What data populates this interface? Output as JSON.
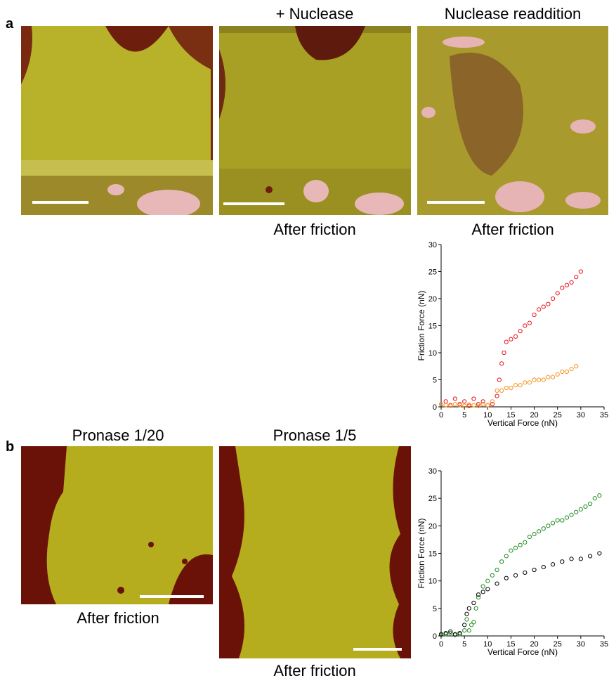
{
  "panel_a": {
    "label": "a",
    "titles": [
      "+ Nuclease",
      "Nuclease readdition"
    ],
    "captions": [
      "After friction",
      "After friction"
    ]
  },
  "panel_b": {
    "label": "b",
    "titles": [
      "Pronase 1/20",
      "Pronase 1/5"
    ],
    "captions": [
      "After friction",
      "After friction"
    ]
  },
  "chart_data": [
    {
      "type": "scatter",
      "x_label": "Vertical Force (nN)",
      "y_label": "Friction Force (nN)",
      "xlim": [
        0,
        35
      ],
      "ylim": [
        0,
        30
      ],
      "xticks": [
        0,
        5,
        10,
        15,
        20,
        25,
        30,
        35
      ],
      "yticks": [
        0,
        5,
        10,
        15,
        20,
        25,
        30
      ],
      "series": [
        {
          "color": "#e8141c",
          "x": [
            0,
            1,
            2,
            3,
            4,
            5,
            6,
            7,
            8,
            9,
            10,
            11,
            12,
            12.5,
            13,
            13.5,
            14,
            15,
            16,
            17,
            18,
            19,
            20,
            21,
            22,
            23,
            24,
            25,
            26,
            27,
            28,
            29,
            30
          ],
          "values": [
            0.5,
            1,
            0.3,
            1.5,
            0.5,
            1,
            0.2,
            1.5,
            0.5,
            1,
            0.3,
            0.5,
            2,
            5,
            8,
            10,
            12,
            12.5,
            13,
            14,
            15,
            15.5,
            17,
            18,
            18.5,
            19,
            20,
            21,
            22,
            22.5,
            23,
            24,
            25
          ]
        },
        {
          "color": "#f7931e",
          "x": [
            0,
            1,
            2,
            3,
            4,
            5,
            6,
            7,
            8,
            9,
            10,
            11,
            12,
            13,
            14,
            15,
            16,
            17,
            18,
            19,
            20,
            21,
            22,
            23,
            24,
            25,
            26,
            27,
            28,
            29
          ],
          "values": [
            0.5,
            0.3,
            0.2,
            0.5,
            0.3,
            0.2,
            0.4,
            0.3,
            0.2,
            0.5,
            0.3,
            1,
            3,
            3,
            3.5,
            3.5,
            4,
            4,
            4.5,
            4.5,
            5,
            5,
            5,
            5.5,
            5.5,
            6,
            6.5,
            6.5,
            7,
            7.5
          ]
        }
      ]
    },
    {
      "type": "scatter",
      "x_label": "Vertical Force (nN)",
      "y_label": "Friction Force (nN)",
      "xlim": [
        0,
        35
      ],
      "ylim": [
        0,
        30
      ],
      "xticks": [
        0,
        5,
        10,
        15,
        20,
        25,
        30,
        35
      ],
      "yticks": [
        0,
        5,
        10,
        15,
        20,
        25,
        30
      ],
      "series": [
        {
          "color": "#1e8c1e",
          "x": [
            0,
            1,
            2,
            3,
            4,
            5,
            5.5,
            6,
            6.5,
            7,
            7.5,
            8,
            9,
            10,
            11,
            12,
            13,
            14,
            15,
            16,
            17,
            18,
            19,
            20,
            21,
            22,
            23,
            24,
            25,
            26,
            27,
            28,
            29,
            30,
            31,
            32,
            33,
            34
          ],
          "values": [
            0.2,
            0.3,
            0.5,
            0.2,
            0.3,
            1,
            3,
            1,
            2,
            2.5,
            5,
            7,
            9,
            10,
            11,
            12,
            13.5,
            14.5,
            15.5,
            16,
            16.5,
            17,
            18,
            18.5,
            19,
            19.5,
            20,
            20.5,
            21,
            21,
            21.5,
            22,
            22.5,
            23,
            23.5,
            24,
            25,
            25.5
          ]
        },
        {
          "color": "#000000",
          "x": [
            0,
            1,
            2,
            3,
            4,
            5,
            5.5,
            6,
            7,
            8,
            9,
            10,
            12,
            14,
            16,
            18,
            20,
            22,
            24,
            26,
            28,
            30,
            32,
            34
          ],
          "values": [
            0.3,
            0.5,
            0.8,
            0.3,
            0.5,
            2,
            4,
            5,
            6,
            7.5,
            8,
            8.5,
            9.5,
            10.5,
            11,
            11.5,
            12,
            12.5,
            13,
            13.5,
            14,
            14,
            14.5,
            15
          ]
        }
      ]
    }
  ]
}
